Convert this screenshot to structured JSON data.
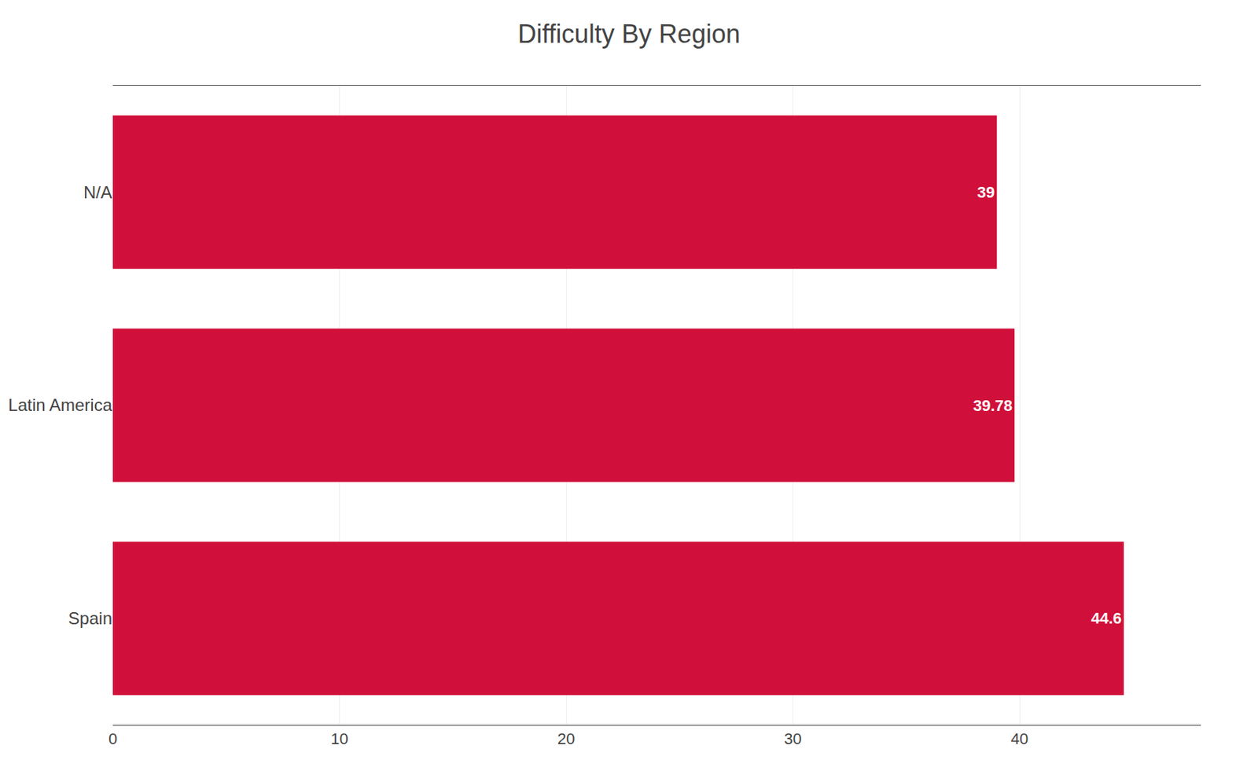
{
  "chart_data": {
    "type": "bar",
    "orientation": "horizontal",
    "title": "Difficulty By Region",
    "categories": [
      "Spain",
      "Latin America",
      "N/A"
    ],
    "values": [
      44.6,
      39.78,
      39
    ],
    "color": "#D0103A",
    "xlim": [
      0,
      48
    ],
    "xticks": [
      0,
      10,
      20,
      30,
      40
    ],
    "grid": true,
    "data_labels": true
  }
}
